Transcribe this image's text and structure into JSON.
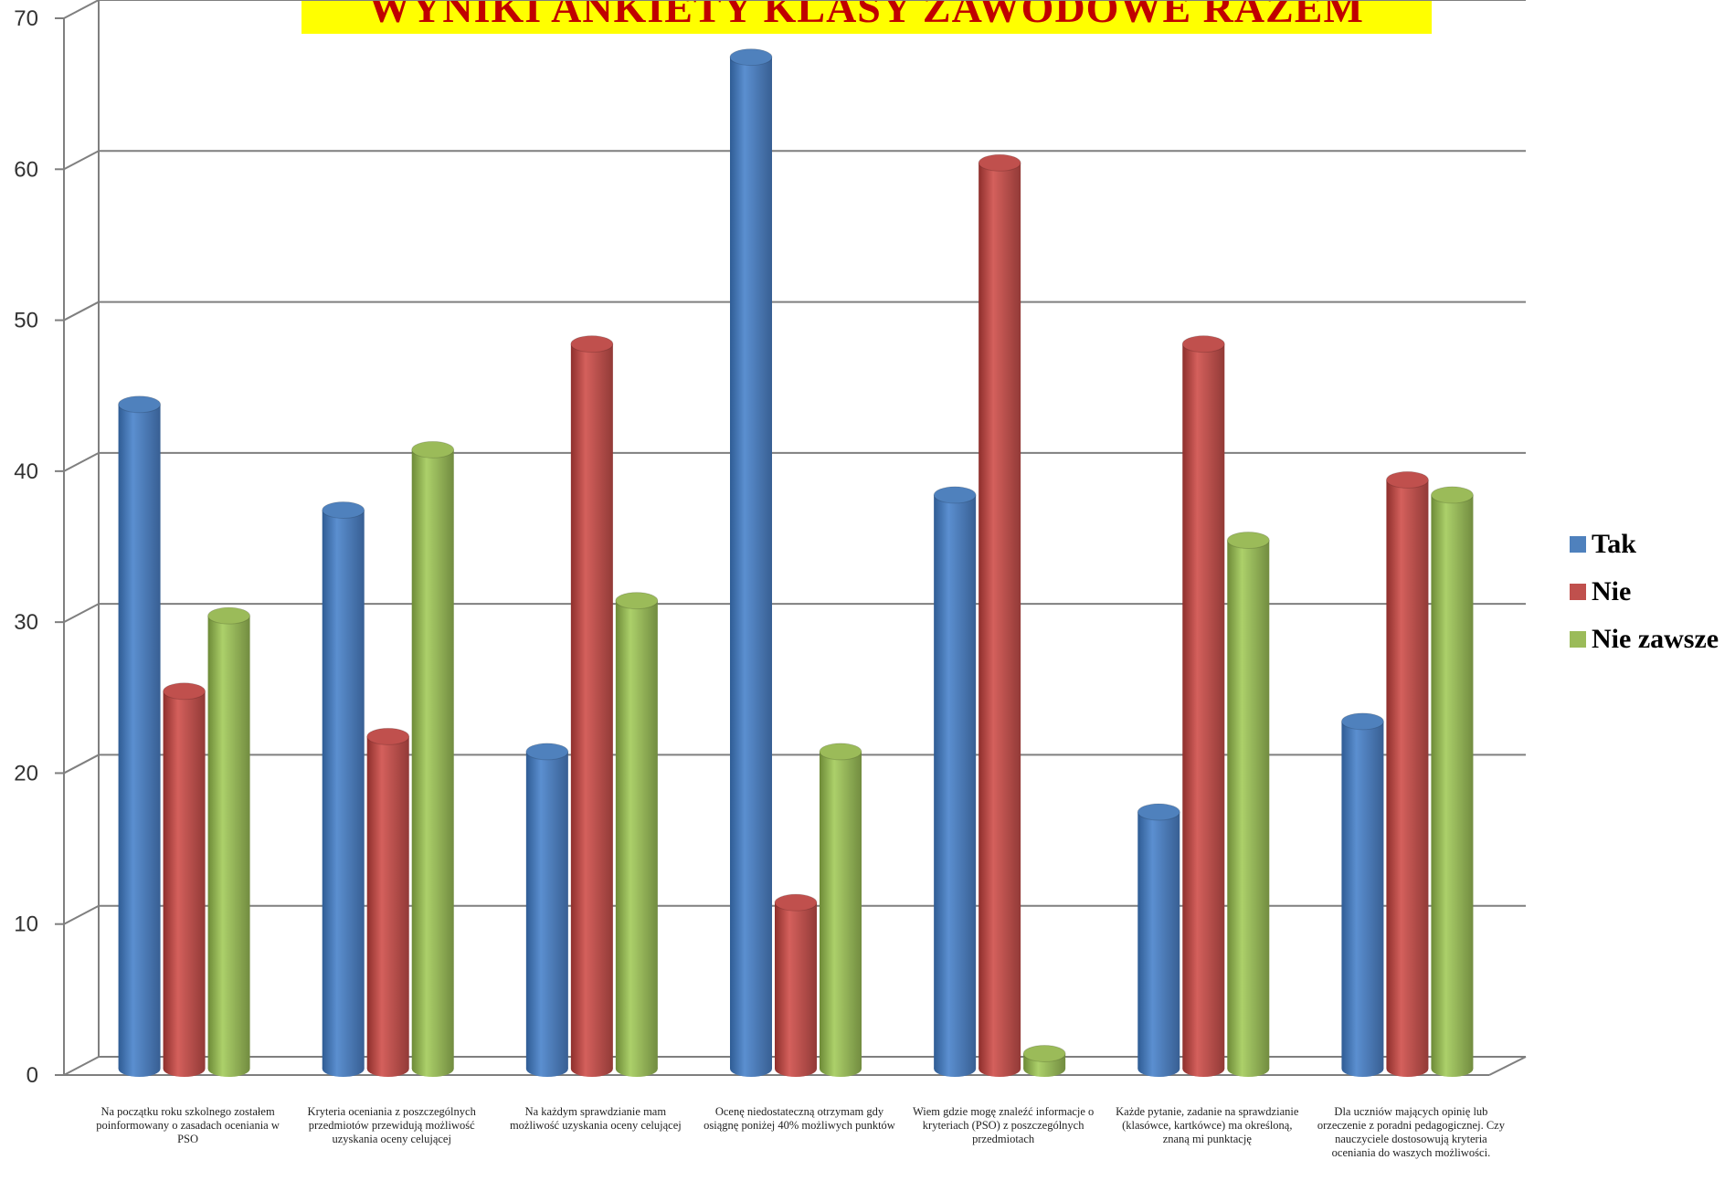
{
  "chart_data": {
    "type": "bar",
    "title": "WYNIKI ANKIETY KLASY ZAWODOWE RAZEM",
    "categories": [
      "Na początku roku szkolnego zostałem poinformowany o zasadach oceniania w PSO",
      "Kryteria oceniania z poszczególnych przedmiotów przewidują możliwość uzyskania oceny celującej",
      "Na każdym sprawdzianie mam możliwość uzyskania oceny celującej",
      "Ocenę niedostateczną otrzymam gdy osiągnę poniżej 40% możliwych punktów",
      "Wiem gdzie mogę znaleźć informacje o kryteriach (PSO) z poszczególnych przedmiotach",
      "Każde pytanie, zadanie na sprawdzianie (klasówce, kartkówce) ma określoną, znaną mi punktację",
      "Dla uczniów mających opinię lub orzeczenie z poradni pedagogicznej. Czy nauczyciele dostosowują kryteria oceniania do waszych możliwości."
    ],
    "series": [
      {
        "name": "Tak",
        "color": "#4f81bd",
        "values": [
          44,
          37,
          21,
          67,
          38,
          17,
          23
        ]
      },
      {
        "name": "Nie",
        "color": "#c0504d",
        "values": [
          25,
          22,
          48,
          11,
          60,
          48,
          39
        ]
      },
      {
        "name": "Nie zawsze",
        "color": "#9bbb59",
        "values": [
          30,
          41,
          31,
          21,
          1,
          35,
          38
        ]
      }
    ],
    "ylim": [
      0,
      70
    ],
    "yticks": [
      "0",
      "10",
      "20",
      "30",
      "40",
      "50",
      "60",
      "70"
    ],
    "grid": true,
    "legend_position": "right"
  }
}
